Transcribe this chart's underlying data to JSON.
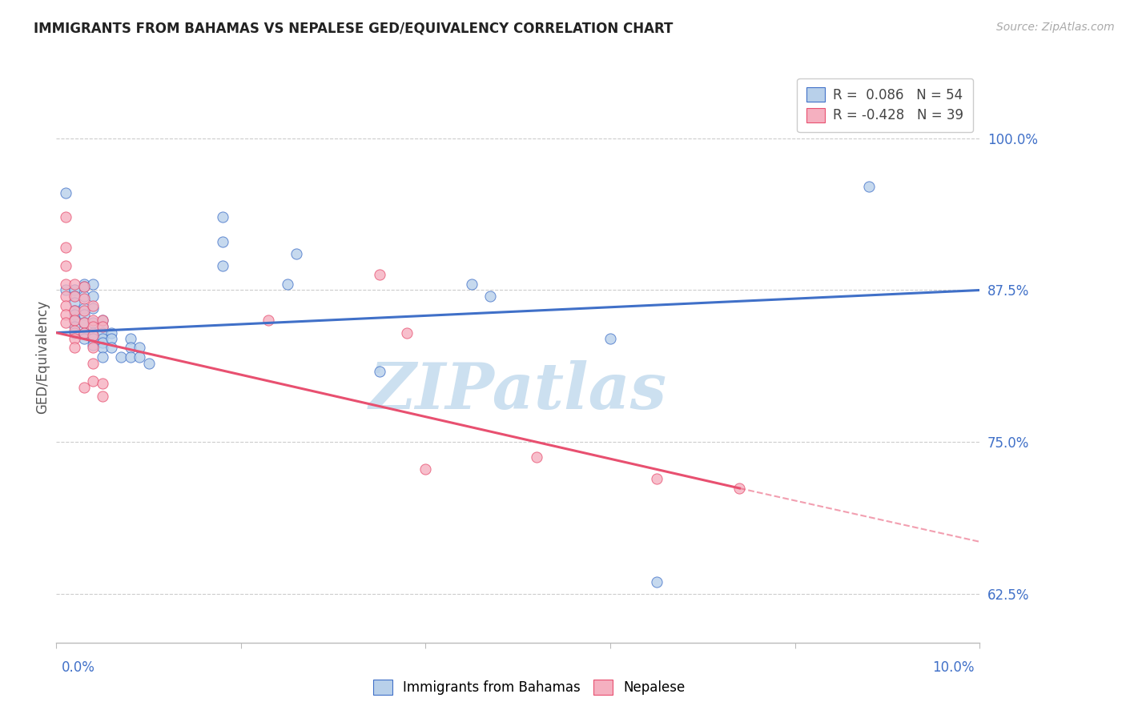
{
  "title": "IMMIGRANTS FROM BAHAMAS VS NEPALESE GED/EQUIVALENCY CORRELATION CHART",
  "source": "Source: ZipAtlas.com",
  "ylabel": "GED/Equivalency",
  "yticks": [
    0.625,
    0.75,
    0.875,
    1.0
  ],
  "ytick_labels": [
    "62.5%",
    "75.0%",
    "87.5%",
    "100.0%"
  ],
  "xmin": 0.0,
  "xmax": 0.1,
  "ymin": 0.585,
  "ymax": 1.055,
  "legend_r1": "R =  0.086",
  "legend_n1": "N = 54",
  "legend_r2": "R = -0.428",
  "legend_n2": "N = 39",
  "series1_color": "#b8d0ea",
  "series2_color": "#f5b0c0",
  "trendline1_color": "#4070c8",
  "trendline2_color": "#e85070",
  "series1_label": "Immigrants from Bahamas",
  "series2_label": "Nepalese",
  "blue_trendline_x0": 0.0,
  "blue_trendline_y0": 0.84,
  "blue_trendline_x1": 0.1,
  "blue_trendline_y1": 0.875,
  "pink_trendline_x0": 0.0,
  "pink_trendline_y0": 0.84,
  "pink_trendline_x1_solid": 0.074,
  "pink_trendline_y1_solid": 0.712,
  "pink_trendline_x1_dash": 0.1,
  "pink_trendline_y1_dash": 0.668,
  "blue_dots_x": [
    0.001,
    0.001,
    0.002,
    0.002,
    0.002,
    0.002,
    0.002,
    0.002,
    0.002,
    0.002,
    0.002,
    0.003,
    0.003,
    0.003,
    0.003,
    0.003,
    0.003,
    0.003,
    0.003,
    0.004,
    0.004,
    0.004,
    0.004,
    0.004,
    0.004,
    0.004,
    0.005,
    0.005,
    0.005,
    0.005,
    0.005,
    0.005,
    0.005,
    0.006,
    0.006,
    0.006,
    0.007,
    0.008,
    0.008,
    0.008,
    0.009,
    0.009,
    0.01,
    0.018,
    0.018,
    0.018,
    0.025,
    0.026,
    0.035,
    0.045,
    0.047,
    0.06,
    0.065,
    0.088
  ],
  "blue_dots_y": [
    0.955,
    0.875,
    0.875,
    0.875,
    0.87,
    0.865,
    0.858,
    0.855,
    0.85,
    0.845,
    0.84,
    0.88,
    0.878,
    0.87,
    0.86,
    0.855,
    0.848,
    0.84,
    0.835,
    0.88,
    0.87,
    0.86,
    0.848,
    0.84,
    0.835,
    0.83,
    0.85,
    0.845,
    0.84,
    0.835,
    0.832,
    0.828,
    0.82,
    0.84,
    0.835,
    0.828,
    0.82,
    0.835,
    0.828,
    0.82,
    0.828,
    0.82,
    0.815,
    0.935,
    0.915,
    0.895,
    0.88,
    0.905,
    0.808,
    0.88,
    0.87,
    0.835,
    0.635,
    0.96
  ],
  "pink_dots_x": [
    0.001,
    0.001,
    0.001,
    0.001,
    0.001,
    0.001,
    0.001,
    0.001,
    0.002,
    0.002,
    0.002,
    0.002,
    0.002,
    0.002,
    0.002,
    0.003,
    0.003,
    0.003,
    0.003,
    0.003,
    0.003,
    0.004,
    0.004,
    0.004,
    0.004,
    0.004,
    0.004,
    0.004,
    0.005,
    0.005,
    0.005,
    0.005,
    0.023,
    0.035,
    0.038,
    0.04,
    0.052,
    0.065,
    0.074
  ],
  "pink_dots_y": [
    0.935,
    0.91,
    0.895,
    0.88,
    0.87,
    0.862,
    0.855,
    0.848,
    0.88,
    0.87,
    0.858,
    0.85,
    0.842,
    0.835,
    0.828,
    0.878,
    0.868,
    0.858,
    0.848,
    0.84,
    0.795,
    0.862,
    0.85,
    0.845,
    0.838,
    0.828,
    0.815,
    0.8,
    0.85,
    0.845,
    0.798,
    0.788,
    0.85,
    0.888,
    0.84,
    0.728,
    0.738,
    0.72,
    0.712
  ],
  "background_color": "#ffffff",
  "grid_color": "#cccccc",
  "watermark_text": "ZIPatlas",
  "watermark_color": "#cce0f0"
}
